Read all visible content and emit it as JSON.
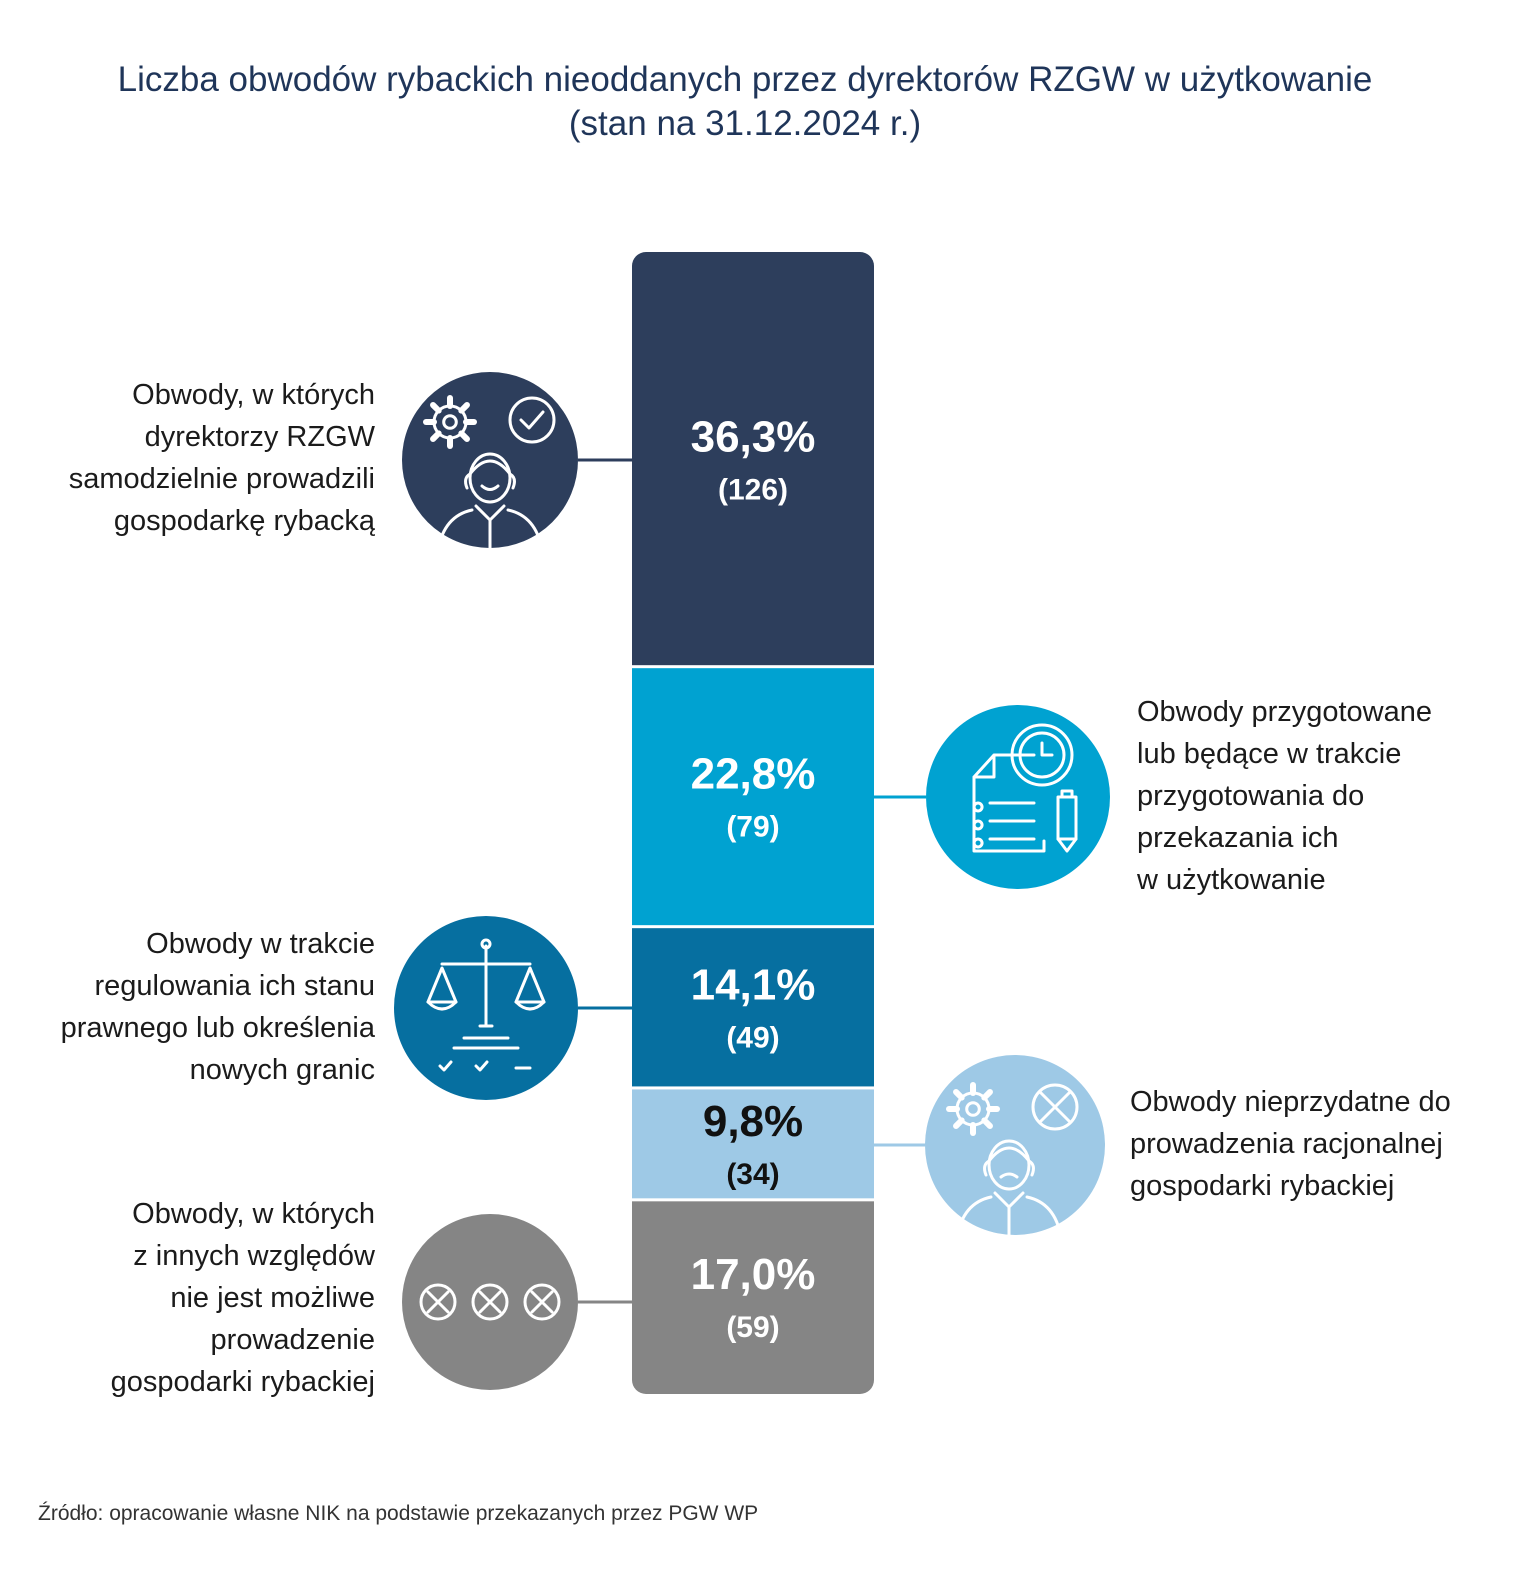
{
  "title_lines": [
    "Liczba obwodów rybackich nieoddanych przez dyrektorów RZGW w użytkowanie",
    "(stan na 31.12.2024 r.)"
  ],
  "source": "Źródło: opracowanie własne NIK na podstawie przekazanych przez PGW WP",
  "chart_data": {
    "type": "bar",
    "stacked": true,
    "orientation": "vertical",
    "total": 347,
    "segments": [
      {
        "percent_label": "36,3%",
        "count_label": "(126)",
        "value": 126,
        "percent": 36.3,
        "color": "#2d3e5c",
        "text_color": "#ffffff",
        "icon": "manager-gear-check-icon",
        "label_lines": [
          "Obwody, w których",
          "dyrektorzy RZGW",
          "samodzielnie prowadzili",
          "gospodarkę rybacką"
        ]
      },
      {
        "percent_label": "22,8%",
        "count_label": "(79)",
        "value": 79,
        "percent": 22.8,
        "color": "#00a2d1",
        "text_color": "#ffffff",
        "icon": "document-clock-icon",
        "label_lines": [
          "Obwody przygotowane",
          "lub będące w trakcie",
          "przygotowania do",
          "przekazania ich",
          "w użytkowanie"
        ]
      },
      {
        "percent_label": "14,1%",
        "count_label": "(49)",
        "value": 49,
        "percent": 14.1,
        "color": "#066fa0",
        "text_color": "#ffffff",
        "icon": "scales-icon",
        "label_lines": [
          "Obwody w trakcie",
          "regulowania ich stanu",
          "prawnego lub określenia",
          "nowych granic"
        ]
      },
      {
        "percent_label": "9,8%",
        "count_label": "(34)",
        "value": 34,
        "percent": 9.8,
        "color": "#9ec9e6",
        "text_color": "#111111",
        "icon": "manager-gear-cross-icon",
        "label_lines": [
          "Obwody nieprzydatne do",
          "prowadzenia racjonalnej",
          "gospodarki rybackiej"
        ]
      },
      {
        "percent_label": "17,0%",
        "count_label": "(59)",
        "value": 59,
        "percent": 17.0,
        "color": "#858585",
        "text_color": "#ffffff",
        "icon": "three-crosses-icon",
        "label_lines": [
          "Obwody, w których",
          "z innych względów",
          "nie jest możliwe",
          "prowadzenie",
          "gospodarki rybackiej"
        ]
      }
    ]
  }
}
